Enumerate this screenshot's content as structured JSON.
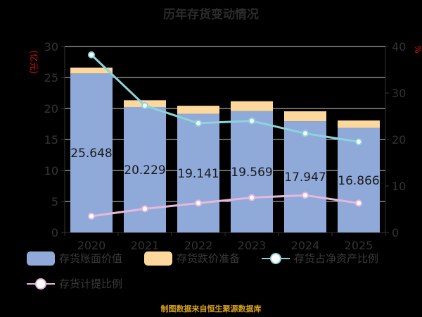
{
  "chart_data": {
    "type": "bar",
    "title": "历年存货变动情况",
    "categories": [
      "2020",
      "2021",
      "2022",
      "2023",
      "2024",
      "2025"
    ],
    "ylabel_left": "(亿元)",
    "ylabel_right": "%",
    "ylim_left": [
      0,
      30
    ],
    "ylim_right": [
      0,
      40
    ],
    "yticks_left": [
      "0",
      "5",
      "10",
      "15",
      "20",
      "25",
      "30"
    ],
    "yticks_right": [
      "0",
      "10",
      "20",
      "30",
      "40"
    ],
    "series": [
      {
        "name": "存货账面价值",
        "kind": "bar",
        "stack": "main",
        "axis": "left",
        "color": "#8fa9d8",
        "values": [
          25.648,
          20.229,
          19.141,
          19.569,
          17.947,
          16.866
        ],
        "labels": [
          "25.648",
          "20.229",
          "19.141",
          "19.569",
          "17.947",
          "16.866"
        ]
      },
      {
        "name": "存货跌价准备",
        "kind": "bar",
        "stack": "main",
        "axis": "left",
        "color": "#fcd89c",
        "values": [
          0.95,
          1.1,
          1.3,
          1.6,
          1.6,
          1.2
        ]
      },
      {
        "name": "存货占净资产比例",
        "kind": "line",
        "axis": "right",
        "color": "#8dd4da",
        "values": [
          38.2,
          27.3,
          23.5,
          24.0,
          21.3,
          19.5
        ]
      },
      {
        "name": "存货计提比例",
        "kind": "line",
        "axis": "right",
        "color": "#e6b8dc",
        "values": [
          3.5,
          5.1,
          6.3,
          7.5,
          8.0,
          6.3
        ]
      }
    ],
    "grid": true,
    "legend_position": "bottom"
  },
  "footer": "制图数据来自恒生聚源数据库"
}
